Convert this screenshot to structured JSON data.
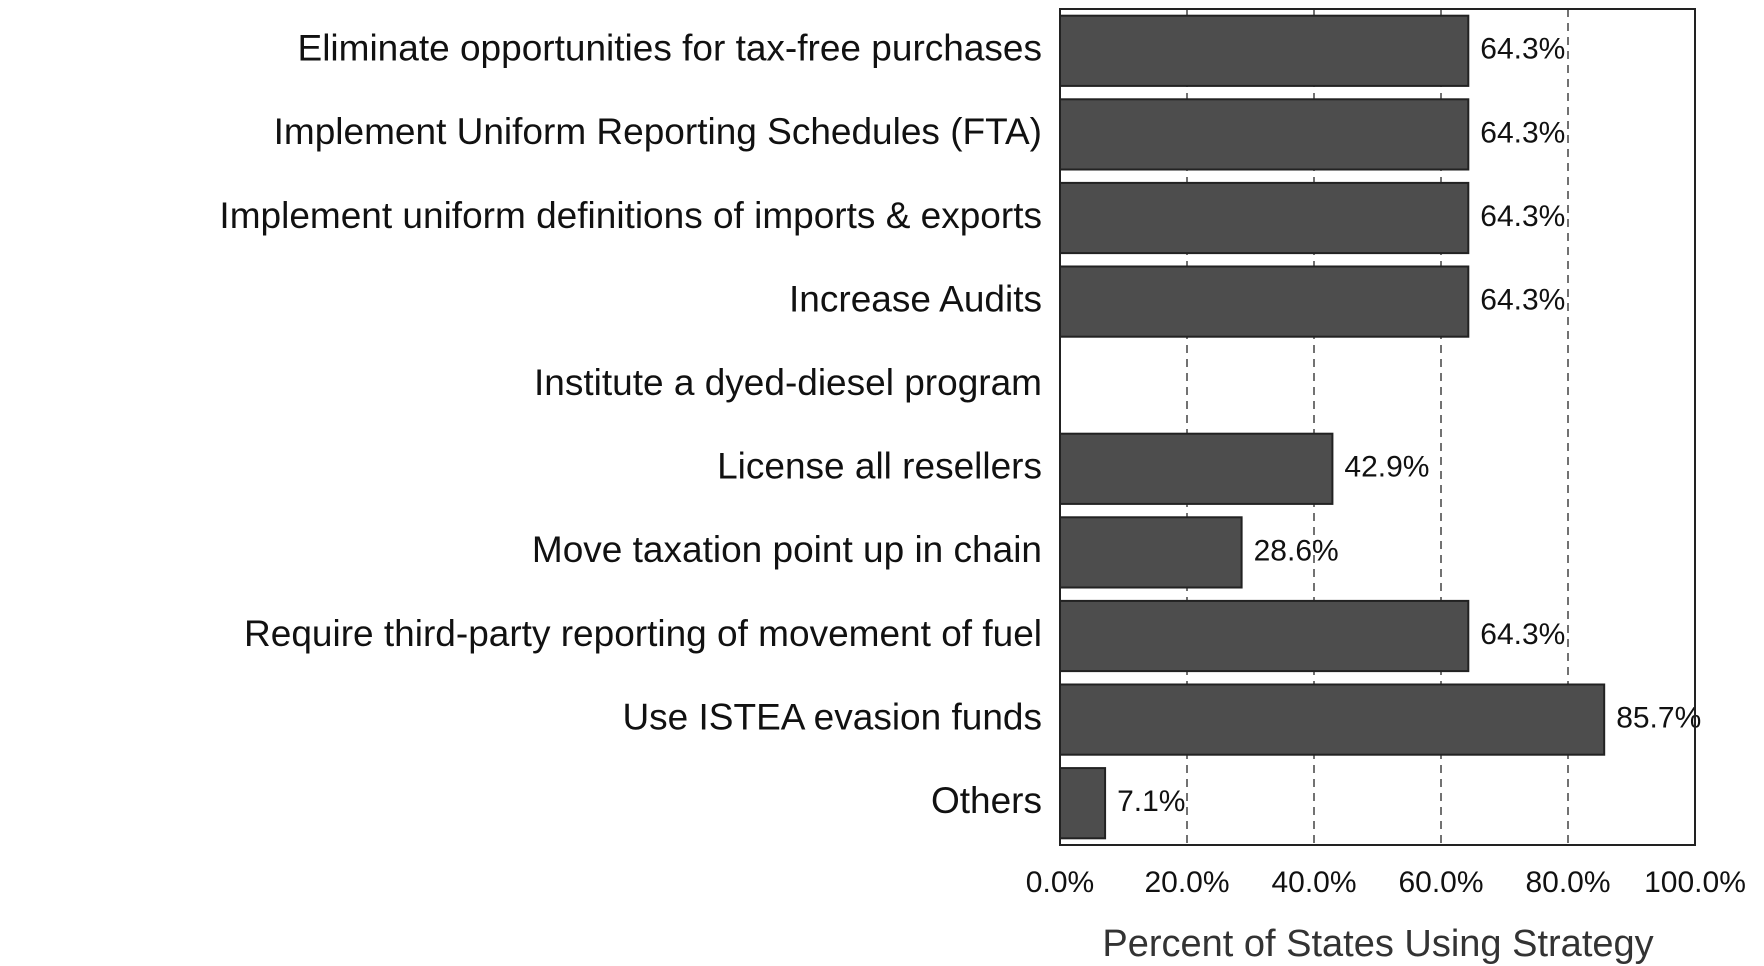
{
  "chart_data": {
    "type": "hbar",
    "categories": [
      "Eliminate opportunities for tax-free purchases",
      "Implement Uniform Reporting Schedules (FTA)",
      "Implement uniform definitions of imports & exports",
      "Increase Audits",
      "Institute a dyed-diesel program",
      "License all resellers",
      "Move taxation point up in chain",
      "Require third-party reporting of movement of fuel",
      "Use ISTEA evasion funds",
      "Others"
    ],
    "values": [
      64.3,
      64.3,
      64.3,
      64.3,
      null,
      42.9,
      28.6,
      64.3,
      85.7,
      7.1
    ],
    "value_labels": [
      "64.3%",
      "64.3%",
      "64.3%",
      "64.3%",
      null,
      "42.9%",
      "28.6%",
      "64.3%",
      "85.7%",
      "7.1%"
    ],
    "color": "#4d4d4d",
    "xlabel": "Percent of States Using Strategy",
    "xlim": [
      0,
      100
    ],
    "xticks": [
      {
        "value": 0,
        "label": "0.0%"
      },
      {
        "value": 20,
        "label": "20.0%"
      },
      {
        "value": 40,
        "label": "40.0%"
      },
      {
        "value": 60,
        "label": "60.0%"
      },
      {
        "value": 80,
        "label": "80.0%"
      },
      {
        "value": 100,
        "label": "100.0%"
      }
    ],
    "grid": true
  }
}
